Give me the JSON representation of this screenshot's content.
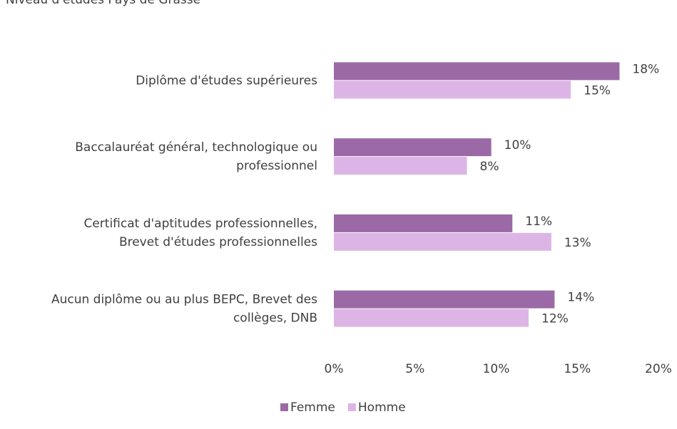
{
  "chart_data": {
    "type": "bar",
    "orientation": "horizontal",
    "title": "Niveau d'études Pays de Grasse",
    "categories": [
      "Diplôme d'études supérieures",
      "Baccalauréat général, technologique ou\nprofessionnel",
      "Certificat d'aptitudes professionnelles,\nBrevet d'études professionnelles",
      "Aucun diplôme ou au plus BEPC, Brevet des\ncollèges, DNB"
    ],
    "series": [
      {
        "name": "Femme",
        "color": "#9b6aa6",
        "values": [
          17.6,
          9.7,
          11.0,
          13.6
        ],
        "value_labels": [
          "18%",
          "10%",
          "11%",
          "14%"
        ]
      },
      {
        "name": "Homme",
        "color": "#dcb5e6",
        "values": [
          14.6,
          8.2,
          13.4,
          12.0
        ],
        "value_labels": [
          "15%",
          "8%",
          "13%",
          "12%"
        ]
      }
    ],
    "xlim": [
      0,
      20
    ],
    "xticks": [
      {
        "value": 0,
        "label": "0%"
      },
      {
        "value": 5,
        "label": "5%"
      },
      {
        "value": 10,
        "label": "10%"
      },
      {
        "value": 15,
        "label": "15%"
      },
      {
        "value": 20,
        "label": "20%"
      }
    ],
    "grid": false,
    "legend": "bottom"
  }
}
